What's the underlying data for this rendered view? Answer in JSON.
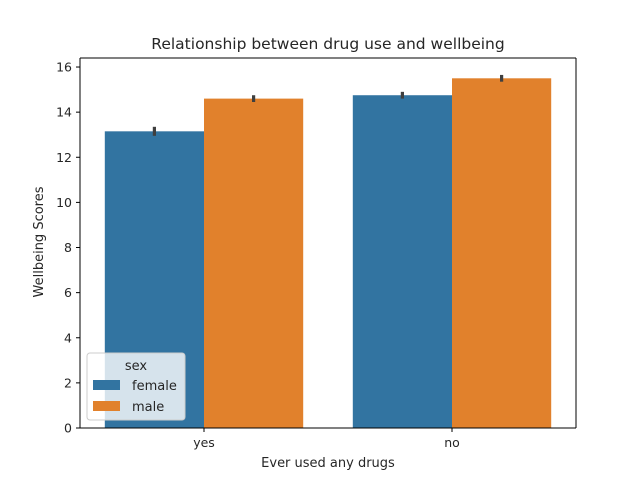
{
  "chart_data": {
    "type": "bar",
    "title": "Relationship between drug use and wellbeing",
    "xlabel": "Ever used any drugs",
    "ylabel": "Wellbeing Scores",
    "categories": [
      "yes",
      "no"
    ],
    "ylim": [
      0,
      16.4
    ],
    "yticks": [
      "0",
      "2",
      "4",
      "6",
      "8",
      "10",
      "12",
      "14",
      "16"
    ],
    "grid": false,
    "legend": {
      "title": "sex",
      "placement": "lower-left"
    },
    "series": [
      {
        "name": "female",
        "color": "#3274a1",
        "values": [
          13.15,
          14.75
        ],
        "ci": [
          [
            12.95,
            13.35
          ],
          [
            14.6,
            14.9
          ]
        ]
      },
      {
        "name": "male",
        "color": "#e1812c",
        "values": [
          14.6,
          15.5
        ],
        "ci": [
          [
            14.45,
            14.75
          ],
          [
            15.35,
            15.65
          ]
        ]
      }
    ]
  }
}
